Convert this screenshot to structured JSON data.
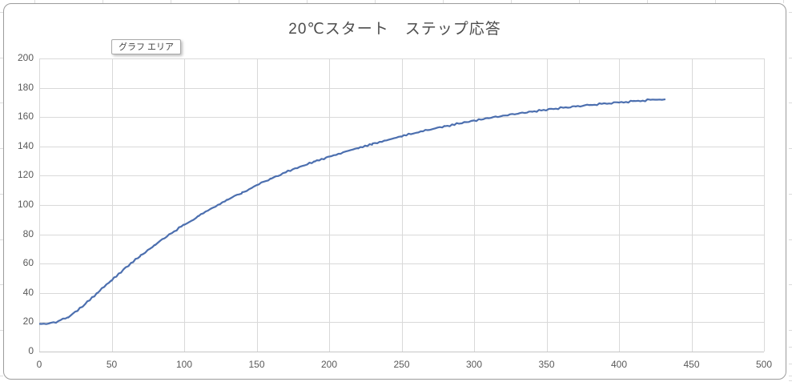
{
  "tooltip": {
    "label": "グラフ エリア"
  },
  "colors": {
    "line": "#4C6FAF",
    "gridline": "#d9d9d9",
    "axis_line": "#c6c6c6",
    "chart_border": "#9c9c9c",
    "tick_text": "#595959",
    "title_text": "#4d4d4d",
    "sheet_gridline": "#dcdcdc"
  },
  "chart_data": {
    "type": "line",
    "title": "20℃スタート　ステップ応答",
    "xlabel": "",
    "ylabel": "",
    "xlim": [
      0,
      500
    ],
    "ylim": [
      0,
      200
    ],
    "x_ticks": [
      0,
      50,
      100,
      150,
      200,
      250,
      300,
      350,
      400,
      450,
      500
    ],
    "y_ticks": [
      0,
      20,
      40,
      60,
      80,
      100,
      120,
      140,
      160,
      180,
      200
    ],
    "grid": true,
    "legend": false,
    "series": [
      {
        "x": [
          0,
          10,
          20,
          30,
          40,
          50,
          60,
          70,
          80,
          90,
          100,
          110,
          120,
          130,
          140,
          150,
          160,
          170,
          180,
          190,
          200,
          210,
          220,
          230,
          240,
          250,
          260,
          270,
          280,
          290,
          300,
          310,
          320,
          330,
          340,
          350,
          360,
          370,
          380,
          390,
          400,
          410,
          420,
          432
        ],
        "y": [
          19,
          19.5,
          23.5,
          31,
          40,
          49,
          57.5,
          65.5,
          73,
          80,
          86.5,
          92.5,
          98,
          103.5,
          108.5,
          113.5,
          118,
          122.3,
          126.2,
          129.7,
          133,
          136,
          139,
          141.8,
          144.4,
          147,
          149.4,
          151.6,
          153.7,
          155.7,
          157.6,
          159.3,
          160.9,
          162.4,
          163.8,
          165,
          166.2,
          167.3,
          168.3,
          169.2,
          170,
          170.8,
          171.5,
          172.2
        ]
      }
    ]
  }
}
